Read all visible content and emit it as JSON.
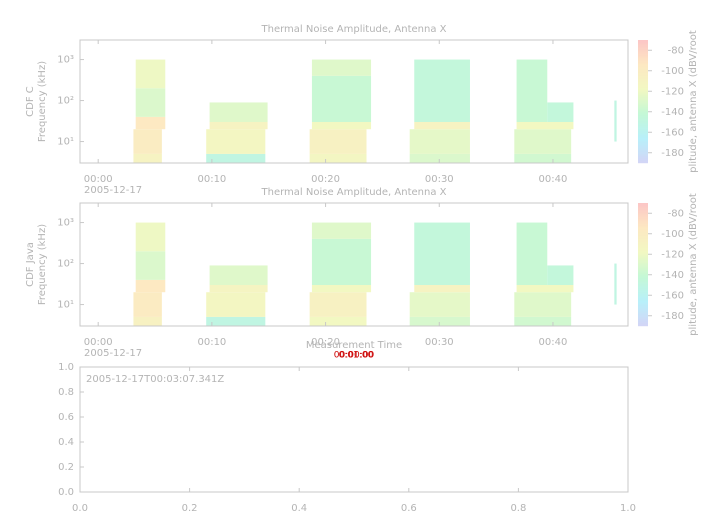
{
  "chart_data": [
    {
      "type": "spectrogram",
      "title": "Thermal Noise Amplitude, Antenna X",
      "ylabel": [
        "CDF C",
        "Frequency (kHz)"
      ],
      "zlabel": "plitude, antenna X (dBV/root",
      "xlim": [
        -1.6,
        46.6
      ],
      "xticks": [
        {
          "value": 0,
          "label": "00:00"
        },
        {
          "value": 10,
          "label": "00:10"
        },
        {
          "value": 20,
          "label": "00:20"
        },
        {
          "value": 30,
          "label": "00:30"
        },
        {
          "value": 40,
          "label": "00:40"
        }
      ],
      "xdate": "2005-12-17",
      "ylim": [
        3,
        3000
      ],
      "log_y": true,
      "yticks": [
        {
          "value": 10,
          "label": "10¹"
        },
        {
          "value": 100,
          "label": "10²"
        },
        {
          "value": 1000,
          "label": "10³"
        }
      ],
      "zlim": [
        -190,
        -70
      ],
      "zticks": [
        -80,
        -100,
        -120,
        -140,
        -160,
        -180
      ],
      "colormap": [
        "#d4d4f6",
        "#b8f0fa",
        "#c4f8d6",
        "#f2f8c2",
        "#fde8c2",
        "#fcc6c6"
      ],
      "blocks": [
        {
          "x": [
            3.1,
            5.6
          ],
          "y": [
            3,
            5
          ],
          "z": -110
        },
        {
          "x": [
            3.1,
            5.6
          ],
          "y": [
            5,
            20
          ],
          "z": -100
        },
        {
          "x": [
            3.3,
            5.9
          ],
          "y": [
            20,
            40
          ],
          "z": -95
        },
        {
          "x": [
            3.3,
            5.9
          ],
          "y": [
            40,
            200
          ],
          "z": -130
        },
        {
          "x": [
            3.3,
            5.9
          ],
          "y": [
            200,
            1000
          ],
          "z": -120
        },
        {
          "x": [
            9.5,
            14.7
          ],
          "y": [
            3,
            5
          ],
          "z": -150
        },
        {
          "x": [
            9.5,
            14.7
          ],
          "y": [
            5,
            20
          ],
          "z": -115
        },
        {
          "x": [
            9.8,
            14.9
          ],
          "y": [
            20,
            30
          ],
          "z": -110
        },
        {
          "x": [
            9.8,
            14.9
          ],
          "y": [
            30,
            90
          ],
          "z": -128
        },
        {
          "x": [
            18.6,
            23.6
          ],
          "y": [
            3,
            5
          ],
          "z": -115
        },
        {
          "x": [
            18.6,
            23.6
          ],
          "y": [
            5,
            20
          ],
          "z": -108
        },
        {
          "x": [
            18.8,
            24
          ],
          "y": [
            20,
            30
          ],
          "z": -118
        },
        {
          "x": [
            18.8,
            24
          ],
          "y": [
            30,
            400
          ],
          "z": -140
        },
        {
          "x": [
            18.8,
            24
          ],
          "y": [
            400,
            1000
          ],
          "z": -128
        },
        {
          "x": [
            27.4,
            32.7
          ],
          "y": [
            3,
            5
          ],
          "z": -130
        },
        {
          "x": [
            27.4,
            32.7
          ],
          "y": [
            5,
            20
          ],
          "z": -125
        },
        {
          "x": [
            27.8,
            32.7
          ],
          "y": [
            20,
            30
          ],
          "z": -110
        },
        {
          "x": [
            27.8,
            32.7
          ],
          "y": [
            30,
            1000
          ],
          "z": -145
        },
        {
          "x": [
            36.6,
            41.6
          ],
          "y": [
            3,
            5
          ],
          "z": -135
        },
        {
          "x": [
            36.6,
            41.6
          ],
          "y": [
            5,
            20
          ],
          "z": -128
        },
        {
          "x": [
            36.8,
            41.8
          ],
          "y": [
            20,
            30
          ],
          "z": -118
        },
        {
          "x": [
            36.8,
            39.5
          ],
          "y": [
            30,
            1000
          ],
          "z": -140
        },
        {
          "x": [
            39.5,
            41.8
          ],
          "y": [
            30,
            90
          ],
          "z": -145
        },
        {
          "x": [
            45.4,
            45.6
          ],
          "y": [
            10,
            100
          ],
          "z": -150
        }
      ]
    },
    {
      "type": "spectrogram",
      "title": "Thermal Noise Amplitude, Antenna X",
      "ylabel": [
        "CDF Java",
        "Frequency (kHz)"
      ],
      "zlabel": "plitude, antenna X (dBV/root",
      "xlabel": "Measurement Time",
      "time_labels": [
        "00:00:00",
        "0:01:00"
      ],
      "xlim": [
        -1.6,
        46.6
      ],
      "xticks": [
        {
          "value": 0,
          "label": "00:00"
        },
        {
          "value": 10,
          "label": "00:10"
        },
        {
          "value": 20,
          "label": "00:20"
        },
        {
          "value": 30,
          "label": "00:30"
        },
        {
          "value": 40,
          "label": "00:40"
        }
      ],
      "xdate": "2005-12-17",
      "ylim": [
        3,
        3000
      ],
      "log_y": true,
      "yticks": [
        {
          "value": 10,
          "label": "10¹"
        },
        {
          "value": 100,
          "label": "10²"
        },
        {
          "value": 1000,
          "label": "10³"
        }
      ],
      "zlim": [
        -190,
        -70
      ],
      "zticks": [
        -80,
        -100,
        -120,
        -140,
        -160,
        -180
      ],
      "colormap": [
        "#d4d4f6",
        "#b8f0fa",
        "#c4f8d6",
        "#f2f8c2",
        "#fde8c2",
        "#fcc6c6"
      ],
      "blocks": [
        {
          "x": [
            3.1,
            5.6
          ],
          "y": [
            3,
            5
          ],
          "z": -108
        },
        {
          "x": [
            3.1,
            5.6
          ],
          "y": [
            5,
            20
          ],
          "z": -98
        },
        {
          "x": [
            3.3,
            5.9
          ],
          "y": [
            20,
            40
          ],
          "z": -95
        },
        {
          "x": [
            3.3,
            5.9
          ],
          "y": [
            40,
            200
          ],
          "z": -130
        },
        {
          "x": [
            3.3,
            5.9
          ],
          "y": [
            200,
            1000
          ],
          "z": -120
        },
        {
          "x": [
            9.5,
            14.7
          ],
          "y": [
            3,
            5
          ],
          "z": -150
        },
        {
          "x": [
            9.5,
            14.7
          ],
          "y": [
            5,
            20
          ],
          "z": -115
        },
        {
          "x": [
            9.8,
            14.9
          ],
          "y": [
            20,
            30
          ],
          "z": -112
        },
        {
          "x": [
            9.8,
            14.9
          ],
          "y": [
            30,
            90
          ],
          "z": -128
        },
        {
          "x": [
            18.6,
            23.6
          ],
          "y": [
            3,
            5
          ],
          "z": -118
        },
        {
          "x": [
            18.6,
            23.6
          ],
          "y": [
            5,
            20
          ],
          "z": -108
        },
        {
          "x": [
            18.8,
            24
          ],
          "y": [
            20,
            30
          ],
          "z": -118
        },
        {
          "x": [
            18.8,
            24
          ],
          "y": [
            30,
            400
          ],
          "z": -140
        },
        {
          "x": [
            18.8,
            24
          ],
          "y": [
            400,
            1000
          ],
          "z": -128
        },
        {
          "x": [
            27.4,
            32.7
          ],
          "y": [
            3,
            5
          ],
          "z": -132
        },
        {
          "x": [
            27.4,
            32.7
          ],
          "y": [
            5,
            20
          ],
          "z": -125
        },
        {
          "x": [
            27.8,
            32.7
          ],
          "y": [
            20,
            30
          ],
          "z": -110
        },
        {
          "x": [
            27.8,
            32.7
          ],
          "y": [
            30,
            1000
          ],
          "z": -145
        },
        {
          "x": [
            36.6,
            41.6
          ],
          "y": [
            3,
            5
          ],
          "z": -135
        },
        {
          "x": [
            36.6,
            41.6
          ],
          "y": [
            5,
            20
          ],
          "z": -128
        },
        {
          "x": [
            36.8,
            41.8
          ],
          "y": [
            20,
            30
          ],
          "z": -118
        },
        {
          "x": [
            36.8,
            39.5
          ],
          "y": [
            30,
            1000
          ],
          "z": -140
        },
        {
          "x": [
            39.5,
            41.8
          ],
          "y": [
            30,
            90
          ],
          "z": -145
        },
        {
          "x": [
            45.4,
            45.6
          ],
          "y": [
            10,
            100
          ],
          "z": -150
        }
      ]
    },
    {
      "type": "line",
      "annotation": "2005-12-17T00:03:07.341Z",
      "xlim": [
        0,
        1
      ],
      "xticks": [
        {
          "value": 0,
          "label": "0.0"
        },
        {
          "value": 0.2,
          "label": "0.2"
        },
        {
          "value": 0.4,
          "label": "0.4"
        },
        {
          "value": 0.6,
          "label": "0.6"
        },
        {
          "value": 0.8,
          "label": "0.8"
        },
        {
          "value": 1,
          "label": "1.0"
        }
      ],
      "ylim": [
        0,
        1
      ],
      "yticks": [
        {
          "value": 0,
          "label": "0.0"
        },
        {
          "value": 0.2,
          "label": "0.2"
        },
        {
          "value": 0.4,
          "label": "0.4"
        },
        {
          "value": 0.6,
          "label": "0.6"
        },
        {
          "value": 0.8,
          "label": "0.8"
        },
        {
          "value": 1,
          "label": "1.0"
        }
      ],
      "series": []
    }
  ]
}
